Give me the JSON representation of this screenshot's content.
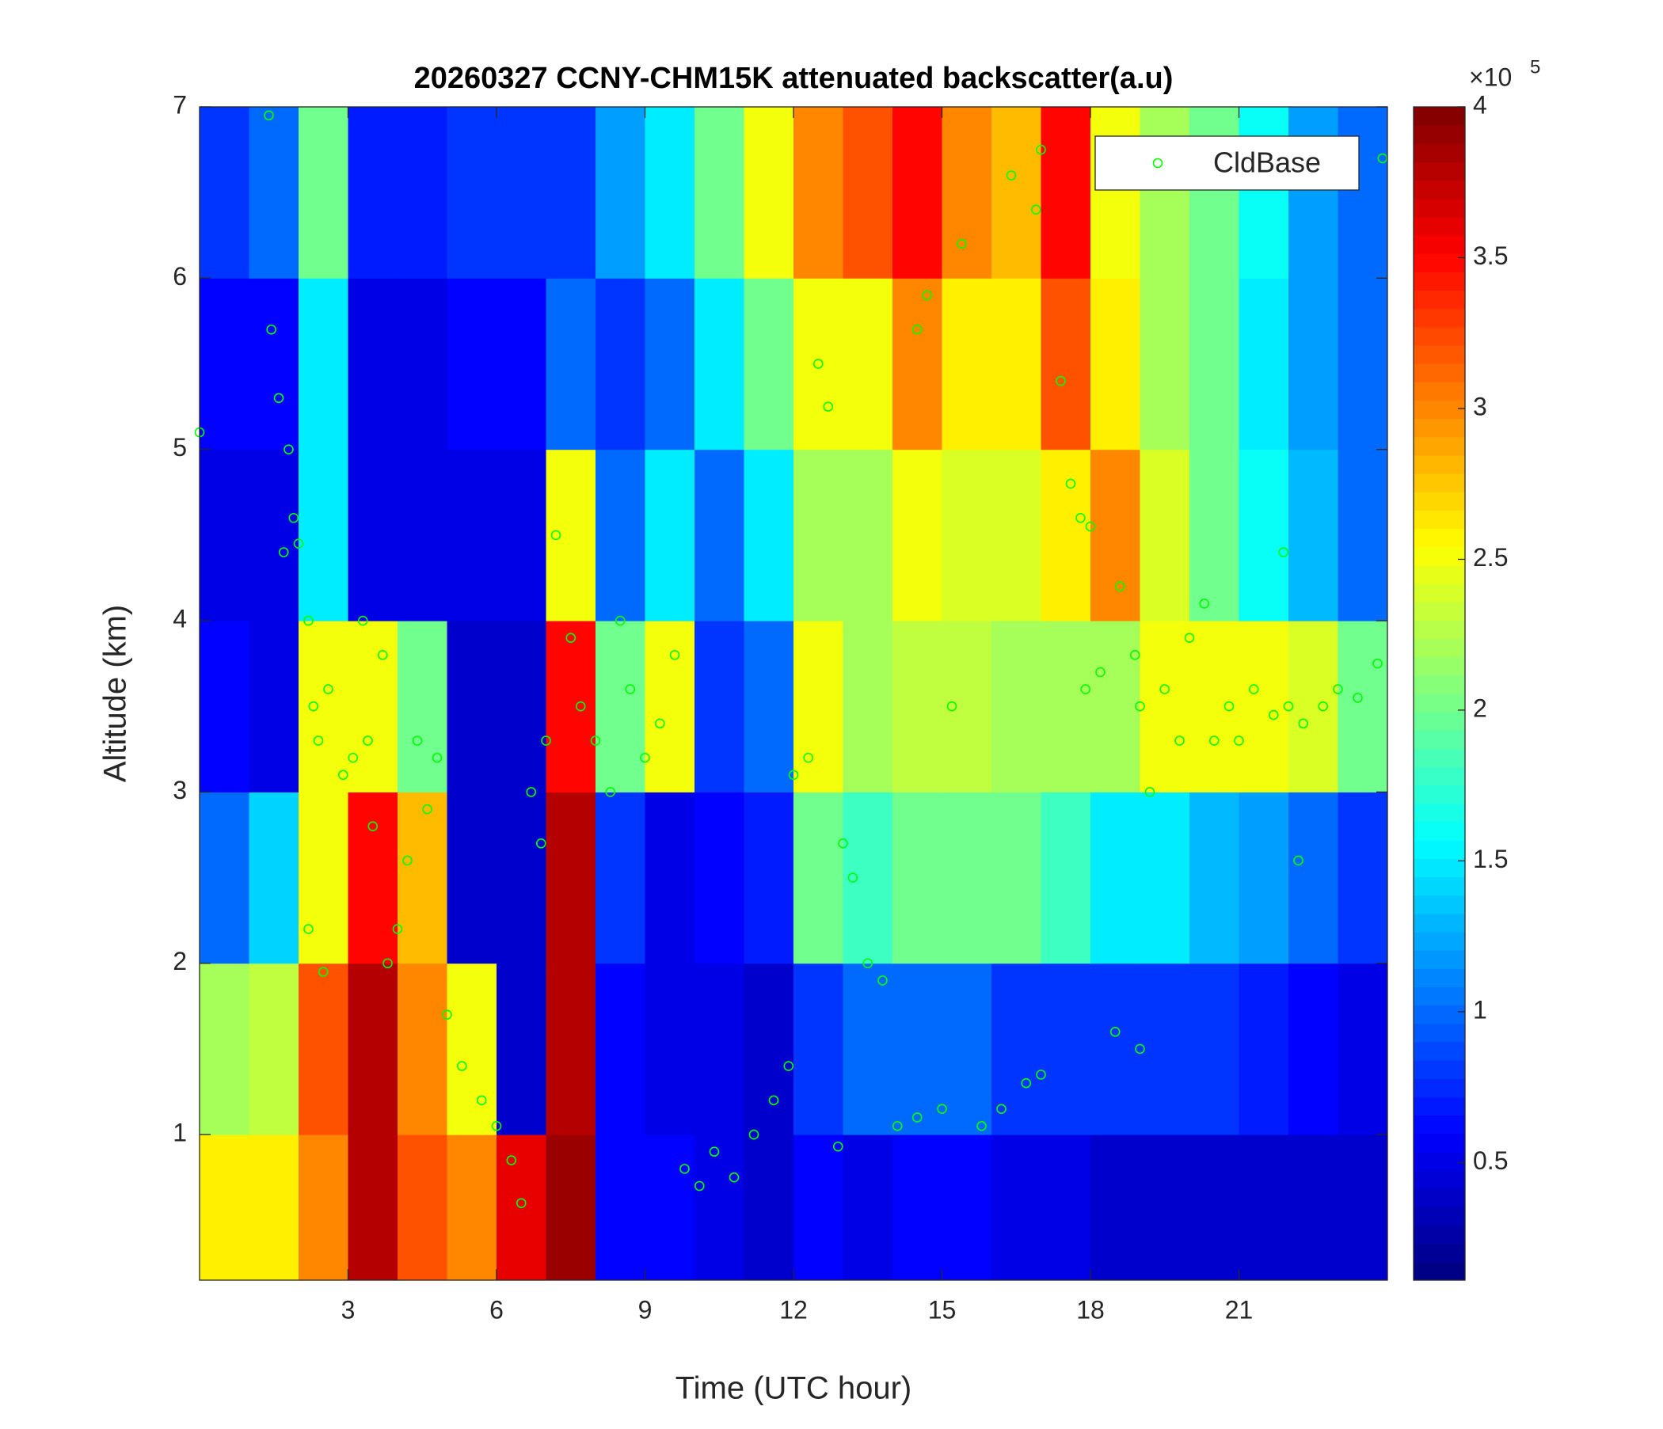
{
  "chart_data": {
    "type": "heatmap",
    "title": "20260327 CCNY-CHM15K attenuated backscatter(a.u)",
    "x_label": "Time (UTC hour)",
    "y_label": "Altitude (km)",
    "xlim": [
      0,
      24
    ],
    "ylim": [
      0.15,
      7
    ],
    "xticks": [
      3,
      6,
      9,
      12,
      15,
      18,
      21
    ],
    "yticks": [
      1,
      2,
      3,
      4,
      5,
      6,
      7
    ],
    "colormap": "jet",
    "clim": [
      0.11,
      4
    ],
    "colorbar_ticks": [
      0.5,
      1,
      1.5,
      2,
      2.5,
      3,
      3.5,
      4
    ],
    "colorbar_multiplier": "×10",
    "colorbar_exponent": "5",
    "x_edges": [
      0,
      1,
      2,
      3,
      4,
      5,
      6,
      7,
      8,
      9,
      10,
      11,
      12,
      13,
      14,
      15,
      16,
      17,
      18,
      19,
      20,
      21,
      22,
      23,
      24
    ],
    "y_edges": [
      0.15,
      1,
      2,
      3,
      4,
      5,
      6,
      7
    ],
    "z": [
      [
        2.6,
        2.6,
        3.0,
        3.8,
        3.2,
        3.0,
        3.6,
        3.9,
        0.6,
        0.6,
        0.5,
        0.4,
        0.6,
        0.5,
        0.6,
        0.6,
        0.5,
        0.5,
        0.4,
        0.4,
        0.4,
        0.4,
        0.4,
        0.4
      ],
      [
        2.2,
        2.3,
        3.2,
        3.8,
        3.0,
        2.5,
        0.4,
        3.8,
        0.6,
        0.5,
        0.5,
        0.4,
        0.8,
        1.0,
        1.0,
        1.0,
        0.8,
        0.8,
        0.8,
        0.8,
        0.8,
        0.7,
        0.6,
        0.5
      ],
      [
        1.0,
        1.4,
        2.5,
        3.5,
        2.8,
        0.4,
        0.4,
        3.8,
        0.8,
        0.5,
        0.6,
        0.7,
        2.0,
        1.8,
        2.0,
        2.0,
        2.0,
        1.8,
        1.5,
        1.5,
        1.3,
        1.2,
        1.0,
        0.8
      ],
      [
        0.6,
        0.5,
        2.5,
        2.5,
        2.0,
        0.4,
        0.4,
        3.5,
        2.0,
        2.5,
        0.8,
        1.0,
        2.5,
        2.2,
        2.3,
        2.3,
        2.2,
        2.2,
        2.2,
        2.5,
        2.5,
        2.5,
        2.4,
        2.0
      ],
      [
        0.5,
        0.5,
        1.5,
        0.5,
        0.5,
        0.5,
        0.5,
        2.5,
        1.0,
        1.5,
        1.0,
        1.5,
        2.2,
        2.2,
        2.5,
        2.4,
        2.4,
        2.6,
        3.0,
        2.4,
        2.0,
        1.6,
        1.3,
        1.0
      ],
      [
        0.6,
        0.6,
        1.5,
        0.5,
        0.5,
        0.6,
        0.6,
        1.0,
        0.8,
        1.0,
        1.5,
        2.0,
        2.5,
        2.5,
        3.0,
        2.6,
        2.6,
        3.2,
        2.6,
        2.2,
        2.0,
        1.5,
        1.2,
        1.0
      ],
      [
        0.8,
        1.0,
        2.0,
        0.7,
        0.7,
        0.8,
        0.8,
        0.8,
        1.2,
        1.5,
        2.0,
        2.5,
        3.0,
        3.2,
        3.5,
        3.0,
        2.8,
        3.5,
        2.5,
        2.2,
        2.0,
        1.6,
        1.2,
        1.0
      ]
    ],
    "legend_position": "northeast",
    "series": [
      {
        "name": "CldBase",
        "type": "scatter",
        "color": "#00ff00",
        "x": [
          0.0,
          1.4,
          1.45,
          1.6,
          1.8,
          1.9,
          1.7,
          2.0,
          2.2,
          2.3,
          2.4,
          2.6,
          2.2,
          2.5,
          2.9,
          3.1,
          3.3,
          3.4,
          3.5,
          3.7,
          3.8,
          4.0,
          4.2,
          4.4,
          4.6,
          4.8,
          5.0,
          5.3,
          5.7,
          6.0,
          6.3,
          6.5,
          6.7,
          6.9,
          7.0,
          7.2,
          7.5,
          7.7,
          8.0,
          8.3,
          8.5,
          8.7,
          9.0,
          9.3,
          9.6,
          9.8,
          10.1,
          10.4,
          10.8,
          11.2,
          11.6,
          11.9,
          12.0,
          12.3,
          12.5,
          12.7,
          13.0,
          13.2,
          12.9,
          13.5,
          13.8,
          14.1,
          14.5,
          14.5,
          14.7,
          15.0,
          15.2,
          15.4,
          15.8,
          16.2,
          16.4,
          16.7,
          17.0,
          16.9,
          17.0,
          17.4,
          17.6,
          17.8,
          18.0,
          17.9,
          18.2,
          18.5,
          18.6,
          18.9,
          19.0,
          19.2,
          19.0,
          19.5,
          19.8,
          20.0,
          20.3,
          20.5,
          20.8,
          21.0,
          21.3,
          21.7,
          22.0,
          22.3,
          22.7,
          23.0,
          23.4,
          23.8,
          23.9,
          21.9,
          22.2
        ],
        "y": [
          5.1,
          6.95,
          5.7,
          5.3,
          5.0,
          4.6,
          4.4,
          4.45,
          4.0,
          3.5,
          3.3,
          3.6,
          2.2,
          1.95,
          3.1,
          3.2,
          4.0,
          3.3,
          2.8,
          3.8,
          2.0,
          2.2,
          2.6,
          3.3,
          2.9,
          3.2,
          1.7,
          1.4,
          1.2,
          1.05,
          0.85,
          0.6,
          3.0,
          2.7,
          3.3,
          4.5,
          3.9,
          3.5,
          3.3,
          3.0,
          4.0,
          3.6,
          3.2,
          3.4,
          3.8,
          0.8,
          0.7,
          0.9,
          0.75,
          1.0,
          1.2,
          1.4,
          3.1,
          3.2,
          5.5,
          5.25,
          2.7,
          2.5,
          0.93,
          2.0,
          1.9,
          1.05,
          1.1,
          5.7,
          5.9,
          1.15,
          3.5,
          6.2,
          1.05,
          1.15,
          6.6,
          1.3,
          1.35,
          6.4,
          6.75,
          5.4,
          4.8,
          4.6,
          4.55,
          3.6,
          3.7,
          1.6,
          4.2,
          3.8,
          3.5,
          3.0,
          1.5,
          3.6,
          3.3,
          3.9,
          4.1,
          3.3,
          3.5,
          3.3,
          3.6,
          3.45,
          3.5,
          3.4,
          3.5,
          3.6,
          3.55,
          3.75,
          6.7,
          4.4,
          2.6
        ]
      }
    ]
  }
}
